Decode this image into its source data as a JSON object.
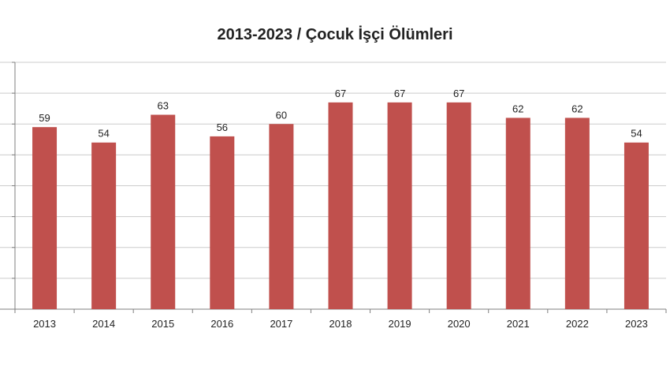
{
  "chart_data": {
    "type": "bar",
    "title": "2013-2023 / Çocuk İşçi Ölümleri",
    "xlabel": "",
    "ylabel": "",
    "categories": [
      "2013",
      "2014",
      "2015",
      "2016",
      "2017",
      "2018",
      "2019",
      "2020",
      "2021",
      "2022",
      "2023"
    ],
    "values": [
      59,
      54,
      63,
      56,
      60,
      67,
      67,
      67,
      62,
      62,
      54
    ],
    "ylim": [
      0,
      80
    ],
    "grid": true,
    "legend": "none",
    "bar_color": "#C0504D"
  }
}
